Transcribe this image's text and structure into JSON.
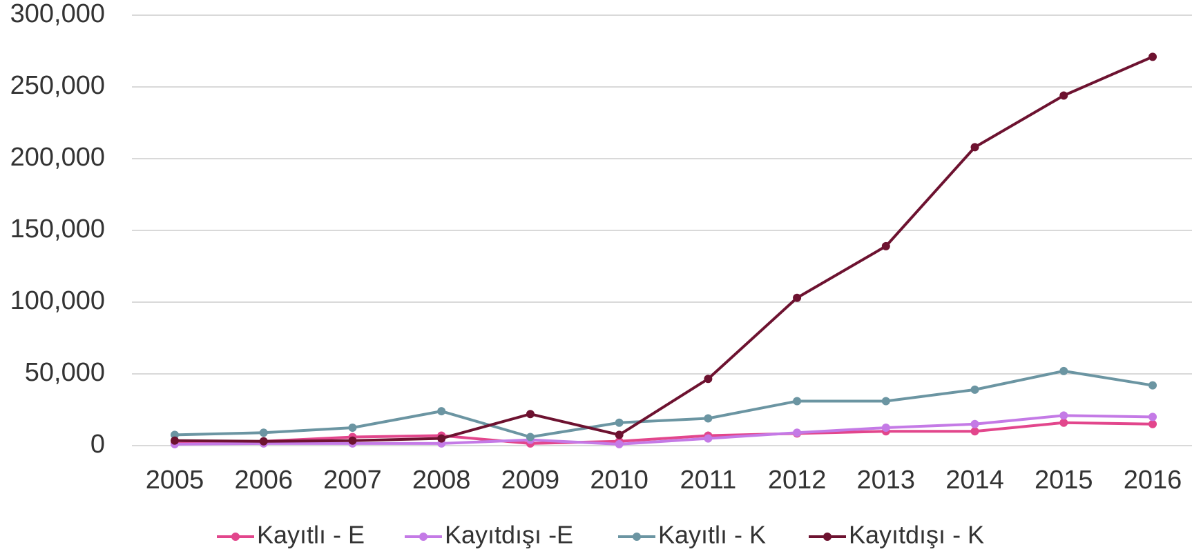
{
  "chart_data": {
    "type": "line",
    "categories": [
      "2005",
      "2006",
      "2007",
      "2008",
      "2009",
      "2010",
      "2011",
      "2012",
      "2013",
      "2014",
      "2015",
      "2016"
    ],
    "series": [
      {
        "name": "Kayıtlı - E",
        "color": "#e2468c",
        "values": [
          1500,
          3000,
          6000,
          7000,
          1500,
          3000,
          7000,
          8500,
          10000,
          10000,
          16000,
          15000
        ]
      },
      {
        "name": "Kayıtdışı -E",
        "color": "#c47ae6",
        "values": [
          1000,
          1500,
          1500,
          1500,
          4000,
          1000,
          5000,
          9000,
          12500,
          15000,
          21000,
          20000
        ]
      },
      {
        "name": "Kayıtlı - K",
        "color": "#6b95a2",
        "values": [
          7500,
          9000,
          12500,
          24000,
          6000,
          16000,
          19000,
          31000,
          31000,
          39000,
          52000,
          42000
        ]
      },
      {
        "name": "Kayıtdışı - K",
        "color": "#6d1230",
        "values": [
          3500,
          3000,
          3500,
          5000,
          22000,
          7500,
          46500,
          103000,
          139000,
          208000,
          244000,
          271000
        ]
      }
    ],
    "ylim": [
      0,
      300000
    ],
    "yticks": [
      0,
      {
        "value": 50000,
        "label": "50,000"
      },
      {
        "value": 100000,
        "label": "100,000"
      },
      {
        "value": 150000,
        "label": "150,000"
      },
      {
        "value": 200000,
        "label": "200,000"
      },
      {
        "value": 250000,
        "label": "250,000"
      },
      {
        "value": 300000,
        "label": "300,000"
      }
    ],
    "grid": true,
    "legend": "bottom"
  }
}
